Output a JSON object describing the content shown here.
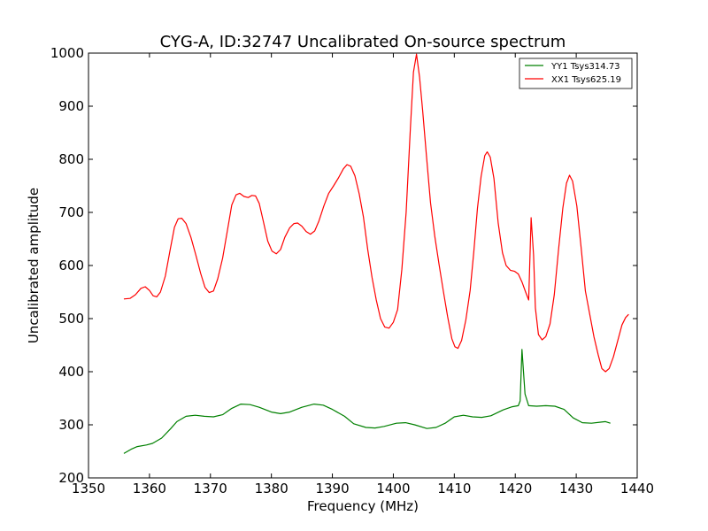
{
  "chart_data": {
    "type": "line",
    "title": "CYG-A, ID:32747 Uncalibrated On-source spectrum",
    "xlabel": "Frequency (MHz)",
    "ylabel": "Uncalibrated amplitude",
    "xlim": [
      1350,
      1440
    ],
    "ylim": [
      200,
      1000
    ],
    "xticks": [
      1350,
      1360,
      1370,
      1380,
      1390,
      1400,
      1410,
      1420,
      1430,
      1440
    ],
    "yticks": [
      200,
      300,
      400,
      500,
      600,
      700,
      800,
      900,
      1000
    ],
    "grid": false,
    "legend_position": "top-right",
    "series": [
      {
        "name": "YY1 Tsys314.73",
        "color": "#008000",
        "points": [
          [
            1355.8,
            246
          ],
          [
            1357,
            254
          ],
          [
            1358,
            259
          ],
          [
            1359.5,
            262
          ],
          [
            1360.5,
            265
          ],
          [
            1362,
            275
          ],
          [
            1363.5,
            293
          ],
          [
            1364.5,
            306
          ],
          [
            1366,
            316
          ],
          [
            1367.5,
            318
          ],
          [
            1369,
            316
          ],
          [
            1370.5,
            315
          ],
          [
            1372,
            319
          ],
          [
            1373.5,
            331
          ],
          [
            1375,
            339
          ],
          [
            1376.5,
            338
          ],
          [
            1378,
            333
          ],
          [
            1380,
            324
          ],
          [
            1381.5,
            321
          ],
          [
            1383,
            324
          ],
          [
            1385,
            333
          ],
          [
            1387,
            339
          ],
          [
            1388.5,
            337
          ],
          [
            1390,
            329
          ],
          [
            1392,
            316
          ],
          [
            1393.5,
            302
          ],
          [
            1395.5,
            295
          ],
          [
            1397,
            294
          ],
          [
            1398.5,
            297
          ],
          [
            1400.5,
            303
          ],
          [
            1402,
            304
          ],
          [
            1403.5,
            300
          ],
          [
            1405.5,
            293
          ],
          [
            1407,
            295
          ],
          [
            1408.5,
            303
          ],
          [
            1410,
            315
          ],
          [
            1411.5,
            318
          ],
          [
            1413,
            315
          ],
          [
            1414.5,
            314
          ],
          [
            1416,
            317
          ],
          [
            1418,
            328
          ],
          [
            1419.5,
            334
          ],
          [
            1420.5,
            336
          ],
          [
            1420.8,
            345
          ],
          [
            1421.1,
            442
          ],
          [
            1421.6,
            358
          ],
          [
            1422.2,
            336
          ],
          [
            1423.5,
            335
          ],
          [
            1425,
            336
          ],
          [
            1426.5,
            335
          ],
          [
            1428,
            329
          ],
          [
            1429.5,
            313
          ],
          [
            1431,
            304
          ],
          [
            1432.5,
            303
          ],
          [
            1434,
            305
          ],
          [
            1434.8,
            306
          ],
          [
            1435.6,
            303
          ]
        ]
      },
      {
        "name": "XX1 Tsys625.19",
        "color": "#ff0000",
        "points": [
          [
            1355.8,
            537
          ],
          [
            1356.8,
            538
          ],
          [
            1357.7,
            545
          ],
          [
            1358.6,
            557
          ],
          [
            1359.3,
            560
          ],
          [
            1360,
            553
          ],
          [
            1360.6,
            543
          ],
          [
            1361.2,
            541
          ],
          [
            1361.8,
            550
          ],
          [
            1362.6,
            580
          ],
          [
            1363.4,
            630
          ],
          [
            1364.1,
            672
          ],
          [
            1364.7,
            688
          ],
          [
            1365.3,
            689
          ],
          [
            1366,
            679
          ],
          [
            1366.8,
            653
          ],
          [
            1367.6,
            620
          ],
          [
            1368.4,
            585
          ],
          [
            1369.1,
            559
          ],
          [
            1369.8,
            549
          ],
          [
            1370.5,
            552
          ],
          [
            1371.2,
            575
          ],
          [
            1372,
            614
          ],
          [
            1372.8,
            667
          ],
          [
            1373.5,
            714
          ],
          [
            1374.2,
            733
          ],
          [
            1374.8,
            736
          ],
          [
            1375.5,
            730
          ],
          [
            1376.2,
            728
          ],
          [
            1376.8,
            732
          ],
          [
            1377.4,
            731
          ],
          [
            1378,
            717
          ],
          [
            1378.7,
            682
          ],
          [
            1379.4,
            646
          ],
          [
            1380.1,
            627
          ],
          [
            1380.8,
            622
          ],
          [
            1381.5,
            630
          ],
          [
            1382.2,
            653
          ],
          [
            1383,
            671
          ],
          [
            1383.7,
            679
          ],
          [
            1384.3,
            680
          ],
          [
            1385,
            674
          ],
          [
            1385.7,
            664
          ],
          [
            1386.4,
            659
          ],
          [
            1387.1,
            665
          ],
          [
            1387.8,
            684
          ],
          [
            1388.6,
            712
          ],
          [
            1389.4,
            736
          ],
          [
            1390.2,
            750
          ],
          [
            1391,
            765
          ],
          [
            1391.8,
            782
          ],
          [
            1392.4,
            790
          ],
          [
            1393,
            787
          ],
          [
            1393.7,
            769
          ],
          [
            1394.4,
            735
          ],
          [
            1395.1,
            691
          ],
          [
            1395.8,
            630
          ],
          [
            1396.5,
            578
          ],
          [
            1397.2,
            535
          ],
          [
            1397.9,
            500
          ],
          [
            1398.6,
            484
          ],
          [
            1399.3,
            482
          ],
          [
            1400,
            493
          ],
          [
            1400.7,
            517
          ],
          [
            1401.4,
            593
          ],
          [
            1402.1,
            700
          ],
          [
            1402.8,
            859
          ],
          [
            1403.3,
            964
          ],
          [
            1403.8,
            998
          ],
          [
            1404.3,
            955
          ],
          [
            1404.8,
            893
          ],
          [
            1405.4,
            811
          ],
          [
            1406.1,
            718
          ],
          [
            1406.8,
            655
          ],
          [
            1407.5,
            602
          ],
          [
            1408.2,
            552
          ],
          [
            1408.9,
            504
          ],
          [
            1409.6,
            462
          ],
          [
            1410.1,
            447
          ],
          [
            1410.6,
            444
          ],
          [
            1411.2,
            459
          ],
          [
            1411.9,
            498
          ],
          [
            1412.6,
            553
          ],
          [
            1413.2,
            626
          ],
          [
            1413.8,
            708
          ],
          [
            1414.4,
            768
          ],
          [
            1415,
            807
          ],
          [
            1415.4,
            814
          ],
          [
            1415.9,
            804
          ],
          [
            1416.5,
            764
          ],
          [
            1417.2,
            680
          ],
          [
            1417.9,
            624
          ],
          [
            1418.5,
            600
          ],
          [
            1419.2,
            591
          ],
          [
            1419.9,
            589
          ],
          [
            1420.5,
            584
          ],
          [
            1421.1,
            569
          ],
          [
            1421.7,
            550
          ],
          [
            1422.2,
            535
          ],
          [
            1422.6,
            690
          ],
          [
            1423,
            620
          ],
          [
            1423.3,
            520
          ],
          [
            1423.8,
            470
          ],
          [
            1424.4,
            460
          ],
          [
            1425,
            466
          ],
          [
            1425.7,
            490
          ],
          [
            1426.4,
            545
          ],
          [
            1427.1,
            630
          ],
          [
            1427.8,
            708
          ],
          [
            1428.4,
            755
          ],
          [
            1428.9,
            770
          ],
          [
            1429.4,
            759
          ],
          [
            1430.1,
            712
          ],
          [
            1430.8,
            634
          ],
          [
            1431.5,
            552
          ],
          [
            1432.2,
            509
          ],
          [
            1432.9,
            466
          ],
          [
            1433.6,
            432
          ],
          [
            1434.2,
            406
          ],
          [
            1434.8,
            400
          ],
          [
            1435.4,
            406
          ],
          [
            1436.1,
            428
          ],
          [
            1436.8,
            458
          ],
          [
            1437.5,
            488
          ],
          [
            1438.1,
            502
          ],
          [
            1438.6,
            508
          ]
        ]
      }
    ]
  }
}
